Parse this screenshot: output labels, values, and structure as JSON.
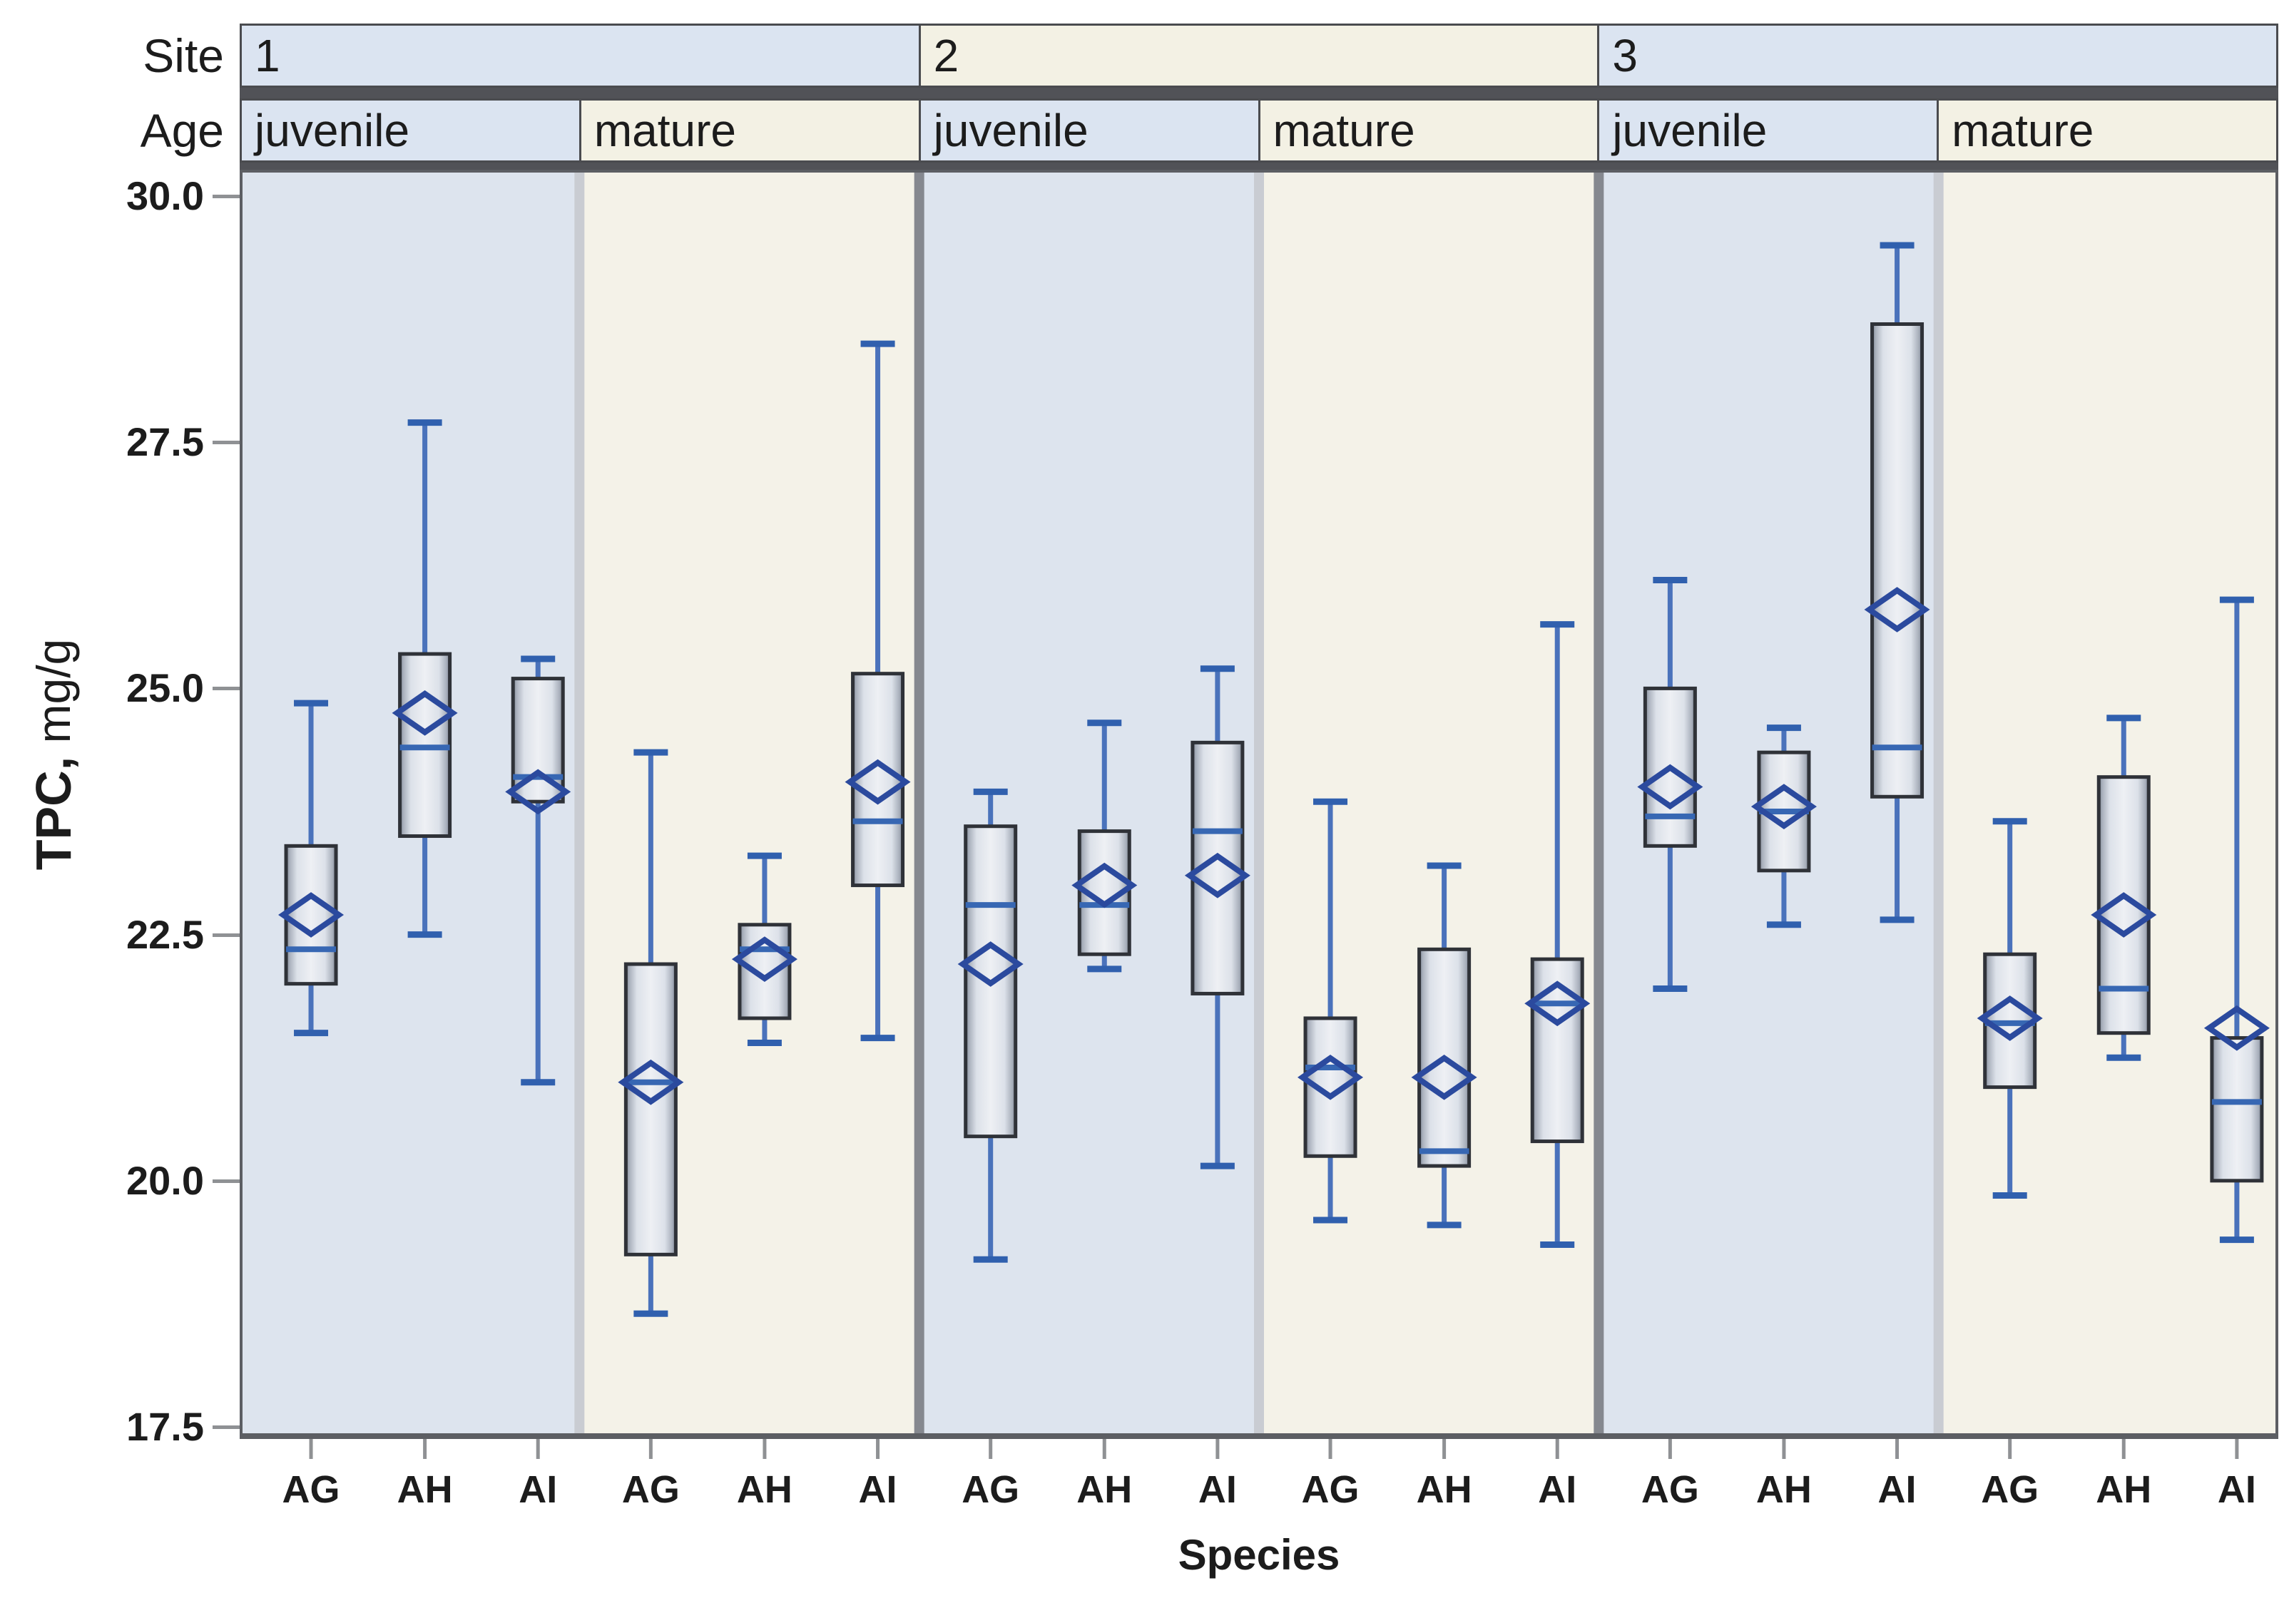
{
  "header": {
    "site_label": "Site",
    "age_label": "Age",
    "sites": [
      {
        "label": "1",
        "ages": [
          "juvenile",
          "mature"
        ]
      },
      {
        "label": "2",
        "ages": [
          "juvenile",
          "mature"
        ]
      },
      {
        "label": "3",
        "ages": [
          "juvenile",
          "mature"
        ]
      }
    ]
  },
  "y_axis": {
    "title_bold": "TPC,",
    "title_rest": " mg/g",
    "tick_labels": [
      "30.0",
      "27.5",
      "25.0",
      "22.5",
      "20.0",
      "17.5"
    ],
    "tick_values": [
      30.0,
      27.5,
      25.0,
      22.5,
      20.0,
      17.5
    ]
  },
  "x_axis": {
    "title": "Species",
    "categories": [
      "AG",
      "AH",
      "AI"
    ]
  },
  "colors": {
    "juvenile_bg": "#dde4ee",
    "mature_bg": "#f4f2e8",
    "header_blue": "#dbe4f1",
    "header_cream": "#f3f1e4",
    "frame_dark": "#4a4b4f",
    "panel_border": "#5c5e63",
    "site_divider": "#85888f",
    "age_divider": "#c9ccd2",
    "tick_gray": "#8f9194",
    "box_border": "#2f3238",
    "box_fill_edge": "#7e8694",
    "box_fill_mid": "#dce1e9",
    "box_fill_center": "#eef0f4",
    "median_blue": "#3767b3",
    "whisker_blue": "#4a72bb",
    "cap_navy": "#3060ae",
    "diamond_navy": "#2b4a9e",
    "text_color": "#1c1c1c"
  },
  "chart_data": {
    "type": "boxplot",
    "title": "",
    "xlabel": "Species",
    "ylabel": "TPC, mg/g",
    "ylim": [
      17.5,
      30.0
    ],
    "y_ticks": [
      30.0,
      27.5,
      25.0,
      22.5,
      20.0,
      17.5
    ],
    "categories": [
      "AG",
      "AH",
      "AI"
    ],
    "legend": "none",
    "grid": "off",
    "facets": [
      {
        "site": "1",
        "age": "juvenile",
        "boxes": [
          {
            "species": "AG",
            "whisker_low": 21.5,
            "q1": 22.0,
            "median": 22.35,
            "mean": 22.7,
            "q3": 23.4,
            "whisker_high": 24.85
          },
          {
            "species": "AH",
            "whisker_low": 22.5,
            "q1": 23.5,
            "median": 24.4,
            "mean": 24.75,
            "q3": 25.35,
            "whisker_high": 27.7
          },
          {
            "species": "AI",
            "whisker_low": 21.0,
            "q1": 23.85,
            "median": 24.1,
            "mean": 23.95,
            "q3": 25.1,
            "whisker_high": 25.3
          }
        ]
      },
      {
        "site": "1",
        "age": "mature",
        "boxes": [
          {
            "species": "AG",
            "whisker_low": 18.65,
            "q1": 19.25,
            "median": 21.0,
            "mean": 21.0,
            "q3": 22.2,
            "whisker_high": 24.35
          },
          {
            "species": "AH",
            "whisker_low": 21.4,
            "q1": 21.65,
            "median": 22.35,
            "mean": 22.25,
            "q3": 22.6,
            "whisker_high": 23.3
          },
          {
            "species": "AI",
            "whisker_low": 21.45,
            "q1": 23.0,
            "median": 23.65,
            "mean": 24.05,
            "q3": 25.15,
            "whisker_high": 28.5
          }
        ]
      },
      {
        "site": "2",
        "age": "juvenile",
        "boxes": [
          {
            "species": "AG",
            "whisker_low": 19.2,
            "q1": 20.45,
            "median": 22.8,
            "mean": 22.2,
            "q3": 23.6,
            "whisker_high": 23.95
          },
          {
            "species": "AH",
            "whisker_low": 22.15,
            "q1": 22.3,
            "median": 22.8,
            "mean": 23.0,
            "q3": 23.55,
            "whisker_high": 24.65
          },
          {
            "species": "AI",
            "whisker_low": 20.15,
            "q1": 21.9,
            "median": 23.55,
            "mean": 23.1,
            "q3": 24.45,
            "whisker_high": 25.2
          }
        ]
      },
      {
        "site": "2",
        "age": "mature",
        "boxes": [
          {
            "species": "AG",
            "whisker_low": 19.6,
            "q1": 20.25,
            "median": 21.15,
            "mean": 21.05,
            "q3": 21.65,
            "whisker_high": 23.85
          },
          {
            "species": "AH",
            "whisker_low": 19.55,
            "q1": 20.15,
            "median": 20.3,
            "mean": 21.05,
            "q3": 22.35,
            "whisker_high": 23.2
          },
          {
            "species": "AI",
            "whisker_low": 19.35,
            "q1": 20.4,
            "median": 21.8,
            "mean": 21.8,
            "q3": 22.25,
            "whisker_high": 25.65
          }
        ]
      },
      {
        "site": "3",
        "age": "juvenile",
        "boxes": [
          {
            "species": "AG",
            "whisker_low": 21.95,
            "q1": 23.4,
            "median": 23.7,
            "mean": 24.0,
            "q3": 25.0,
            "whisker_high": 26.1
          },
          {
            "species": "AH",
            "whisker_low": 22.6,
            "q1": 23.15,
            "median": 23.75,
            "mean": 23.8,
            "q3": 24.35,
            "whisker_high": 24.6
          },
          {
            "species": "AI",
            "whisker_low": 22.65,
            "q1": 23.9,
            "median": 24.4,
            "mean": 25.8,
            "q3": 28.7,
            "whisker_high": 29.5
          }
        ]
      },
      {
        "site": "3",
        "age": "mature",
        "boxes": [
          {
            "species": "AG",
            "whisker_low": 19.85,
            "q1": 20.95,
            "median": 21.6,
            "mean": 21.65,
            "q3": 22.3,
            "whisker_high": 23.65
          },
          {
            "species": "AH",
            "whisker_low": 21.25,
            "q1": 21.5,
            "median": 21.95,
            "mean": 22.7,
            "q3": 24.1,
            "whisker_high": 24.7
          },
          {
            "species": "AI",
            "whisker_low": 19.4,
            "q1": 20.0,
            "median": 20.8,
            "mean": 21.55,
            "q3": 21.45,
            "whisker_high": 25.9
          }
        ]
      }
    ]
  }
}
